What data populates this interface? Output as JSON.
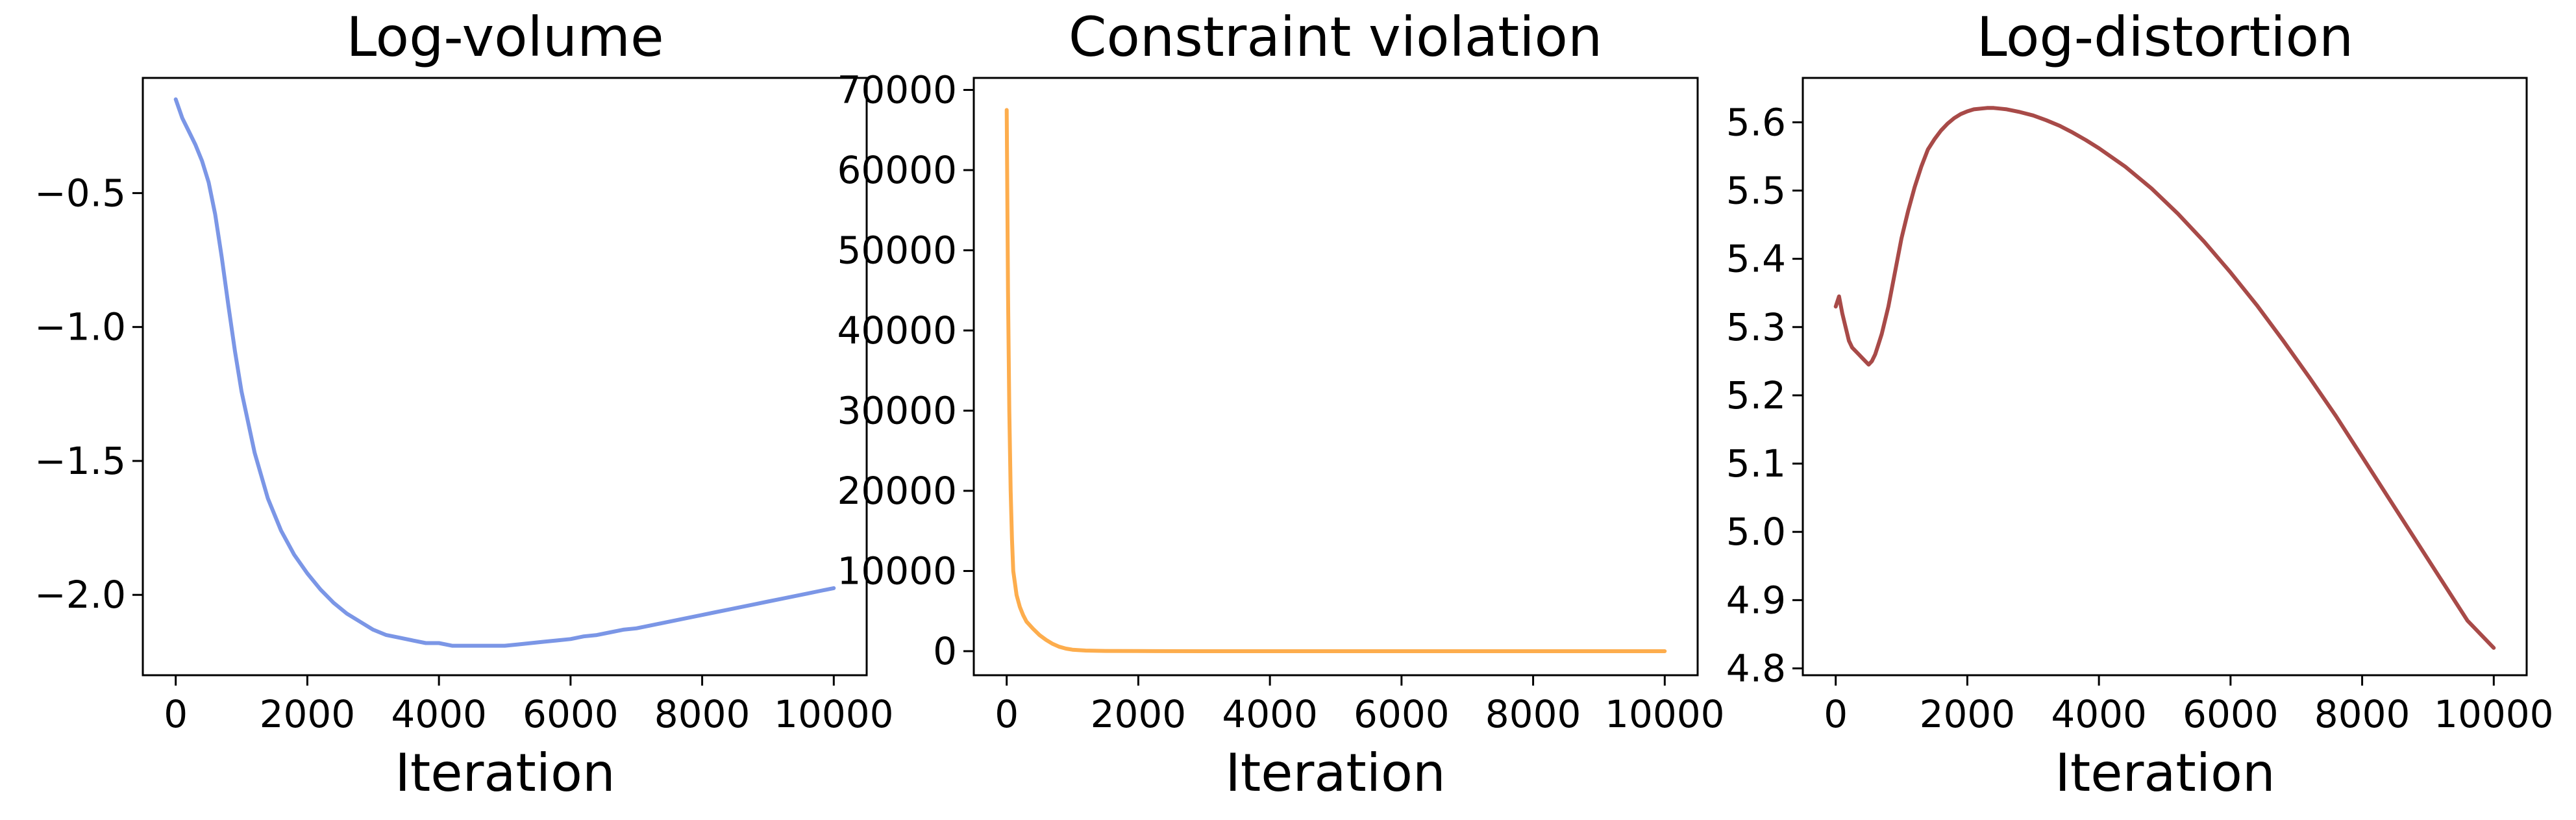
{
  "figure": {
    "background": "#ffffff"
  },
  "chart_data": [
    {
      "type": "line",
      "title": "Log-volume",
      "xlabel": "Iteration",
      "ylabel": "",
      "xlim": [
        -500,
        10500
      ],
      "ylim": [
        -2.3,
        -0.07
      ],
      "xticks": [
        0,
        2000,
        4000,
        6000,
        8000,
        10000
      ],
      "xtick_labels": [
        "0",
        "2000",
        "4000",
        "6000",
        "8000",
        "10000"
      ],
      "yticks": [
        -0.5,
        -1.0,
        -1.5,
        -2.0
      ],
      "ytick_labels": [
        "−0.5",
        "−1.0",
        "−1.5",
        "−2.0"
      ],
      "grid": false,
      "color": "#7b96e6",
      "series": [
        {
          "x": [
            0,
            100,
            200,
            300,
            400,
            500,
            600,
            700,
            800,
            900,
            1000,
            1200,
            1400,
            1600,
            1800,
            2000,
            2200,
            2400,
            2600,
            2800,
            3000,
            3200,
            3400,
            3600,
            3800,
            4000,
            4200,
            4400,
            4600,
            4800,
            5000,
            5200,
            5400,
            5600,
            5800,
            6000,
            6200,
            6400,
            6600,
            6800,
            7000,
            7200,
            7400,
            7600,
            7800,
            8000,
            8200,
            8400,
            8600,
            8800,
            9000,
            9200,
            9400,
            9600,
            9800,
            10000
          ],
          "y": [
            -0.15,
            -0.22,
            -0.27,
            -0.32,
            -0.38,
            -0.46,
            -0.58,
            -0.74,
            -0.92,
            -1.09,
            -1.24,
            -1.47,
            -1.64,
            -1.76,
            -1.85,
            -1.92,
            -1.98,
            -2.03,
            -2.07,
            -2.1,
            -2.13,
            -2.15,
            -2.16,
            -2.17,
            -2.18,
            -2.18,
            -2.19,
            -2.19,
            -2.19,
            -2.19,
            -2.19,
            -2.185,
            -2.18,
            -2.175,
            -2.17,
            -2.165,
            -2.155,
            -2.15,
            -2.14,
            -2.13,
            -2.125,
            -2.115,
            -2.105,
            -2.095,
            -2.085,
            -2.075,
            -2.065,
            -2.055,
            -2.045,
            -2.035,
            -2.025,
            -2.015,
            -2.005,
            -1.995,
            -1.985,
            -1.975
          ]
        }
      ]
    },
    {
      "type": "line",
      "title": "Constraint violation",
      "xlabel": "Iteration",
      "ylabel": "",
      "xlim": [
        -500,
        10500
      ],
      "ylim": [
        -3000,
        71500
      ],
      "xticks": [
        0,
        2000,
        4000,
        6000,
        8000,
        10000
      ],
      "xtick_labels": [
        "0",
        "2000",
        "4000",
        "6000",
        "8000",
        "10000"
      ],
      "yticks": [
        0,
        10000,
        20000,
        30000,
        40000,
        50000,
        60000,
        70000
      ],
      "ytick_labels": [
        "0",
        "10000",
        "20000",
        "30000",
        "40000",
        "50000",
        "60000",
        "70000"
      ],
      "grid": false,
      "color": "#fdad4d",
      "series": [
        {
          "x": [
            0,
            20,
            40,
            60,
            80,
            100,
            150,
            200,
            250,
            300,
            400,
            500,
            600,
            700,
            800,
            900,
            1000,
            1200,
            1500,
            2000,
            3000,
            4000,
            6000,
            8000,
            10000
          ],
          "y": [
            67500,
            45000,
            30000,
            20000,
            14000,
            10000,
            7000,
            5500,
            4500,
            3700,
            2800,
            2000,
            1400,
            900,
            550,
            320,
            180,
            80,
            30,
            10,
            0,
            0,
            0,
            0,
            0
          ]
        }
      ]
    },
    {
      "type": "line",
      "title": "Log-distortion",
      "xlabel": "Iteration",
      "ylabel": "",
      "xlim": [
        -500,
        10500
      ],
      "ylim": [
        4.79,
        5.665
      ],
      "xticks": [
        0,
        2000,
        4000,
        6000,
        8000,
        10000
      ],
      "xtick_labels": [
        "0",
        "2000",
        "4000",
        "6000",
        "8000",
        "10000"
      ],
      "yticks": [
        4.8,
        4.9,
        5.0,
        5.1,
        5.2,
        5.3,
        5.4,
        5.5,
        5.6
      ],
      "ytick_labels": [
        "4.8",
        "4.9",
        "5.0",
        "5.1",
        "5.2",
        "5.3",
        "5.4",
        "5.5",
        "5.6"
      ],
      "grid": false,
      "color": "#a84a48",
      "series": [
        {
          "x": [
            0,
            50,
            100,
            150,
            200,
            250,
            300,
            350,
            400,
            450,
            500,
            550,
            600,
            650,
            700,
            800,
            900,
            1000,
            1100,
            1200,
            1300,
            1400,
            1500,
            1600,
            1700,
            1800,
            1900,
            2000,
            2100,
            2200,
            2300,
            2400,
            2500,
            2600,
            2800,
            3000,
            3200,
            3400,
            3600,
            3800,
            4000,
            4400,
            4800,
            5200,
            5600,
            6000,
            6400,
            6800,
            7200,
            7600,
            8000,
            8400,
            8800,
            9200,
            9600,
            10000
          ],
          "y": [
            5.33,
            5.345,
            5.32,
            5.3,
            5.28,
            5.27,
            5.265,
            5.26,
            5.255,
            5.25,
            5.245,
            5.25,
            5.26,
            5.275,
            5.29,
            5.33,
            5.38,
            5.43,
            5.47,
            5.505,
            5.535,
            5.56,
            5.575,
            5.588,
            5.598,
            5.606,
            5.612,
            5.616,
            5.619,
            5.62,
            5.621,
            5.621,
            5.62,
            5.619,
            5.615,
            5.61,
            5.603,
            5.595,
            5.585,
            5.574,
            5.562,
            5.535,
            5.503,
            5.466,
            5.425,
            5.38,
            5.332,
            5.28,
            5.226,
            5.17,
            5.11,
            5.05,
            4.99,
            4.93,
            4.87,
            4.83
          ]
        }
      ]
    }
  ]
}
